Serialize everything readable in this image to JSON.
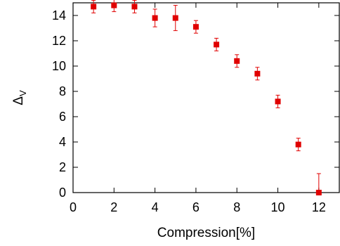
{
  "chart_data": {
    "type": "scatter",
    "xlabel": "Compression[%]",
    "ylabel": {
      "base": "Δ",
      "subscript": "V"
    },
    "xlim": [
      0,
      13
    ],
    "ylim": [
      0,
      15
    ],
    "xticks": [
      0,
      2,
      4,
      6,
      8,
      10,
      12
    ],
    "yticks": [
      0,
      2,
      4,
      6,
      8,
      10,
      12,
      14
    ],
    "grid": false,
    "legend": "none",
    "colors": {
      "marker": "#e00000",
      "axis": "#000000"
    },
    "series": [
      {
        "marker": "square",
        "points": [
          {
            "x": 1,
            "y": 14.7,
            "err": 0.5
          },
          {
            "x": 2,
            "y": 14.8,
            "err": 0.5
          },
          {
            "x": 3,
            "y": 14.7,
            "err": 0.5
          },
          {
            "x": 4,
            "y": 13.8,
            "err": 0.7
          },
          {
            "x": 5,
            "y": 13.8,
            "err": 1.0
          },
          {
            "x": 6,
            "y": 13.1,
            "err": 0.5
          },
          {
            "x": 7,
            "y": 11.7,
            "err": 0.5
          },
          {
            "x": 8,
            "y": 10.4,
            "err": 0.5
          },
          {
            "x": 9,
            "y": 9.4,
            "err": 0.5
          },
          {
            "x": 10,
            "y": 7.2,
            "err": 0.5
          },
          {
            "x": 11,
            "y": 3.8,
            "err": 0.5
          },
          {
            "x": 12,
            "y": 0.0,
            "err": 1.5
          }
        ]
      }
    ]
  }
}
